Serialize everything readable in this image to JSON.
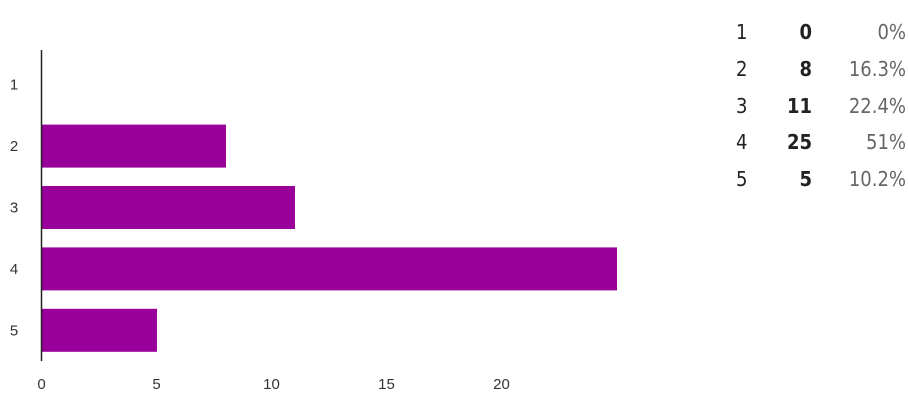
{
  "chart_data": {
    "type": "bar",
    "orientation": "horizontal",
    "categories": [
      "1",
      "2",
      "3",
      "4",
      "5"
    ],
    "values": [
      0,
      8,
      11,
      25,
      5
    ],
    "xlim": [
      0,
      25
    ],
    "xticks": [
      "0",
      "5",
      "10",
      "15",
      "20"
    ],
    "bar_color": "#990099",
    "grid": false
  },
  "summary": {
    "rows": [
      {
        "rating": "1",
        "count": "0",
        "percent": "0%"
      },
      {
        "rating": "2",
        "count": "8",
        "percent": "16.3%"
      },
      {
        "rating": "3",
        "count": "11",
        "percent": "22.4%"
      },
      {
        "rating": "4",
        "count": "25",
        "percent": "51%"
      },
      {
        "rating": "5",
        "count": "5",
        "percent": "10.2%"
      }
    ]
  }
}
